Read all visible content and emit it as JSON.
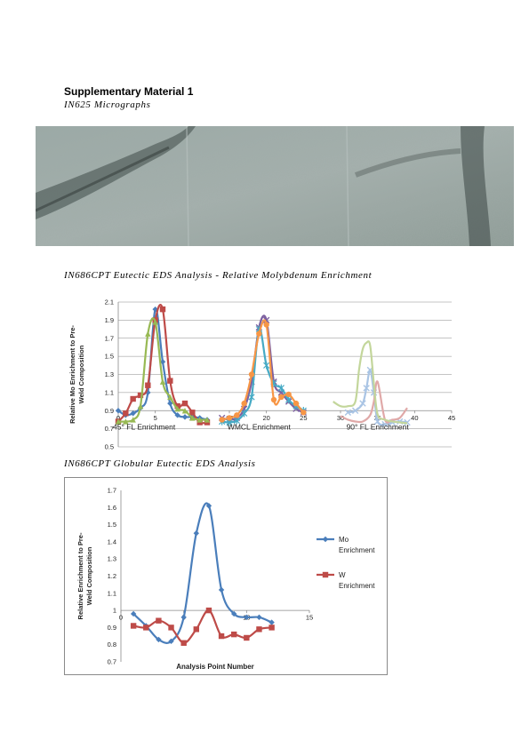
{
  "page": {
    "title": "Supplementary Material 1",
    "micrograph_caption": "IN625 Micrographs",
    "chart1_caption": "IN686CPT Eutectic EDS Analysis - Relative Molybdenum Enrichment",
    "chart2_caption": "IN686CPT Globular Eutectic EDS Analysis"
  },
  "colors": {
    "blue": "#4a7ebb",
    "red": "#be4b48",
    "green": "#98b954",
    "purple": "#7d60a0",
    "teal": "#46aac5",
    "orange": "#f79646",
    "micrograph_base": "#8fa09b"
  },
  "chart_data": [
    {
      "type": "line",
      "title": "",
      "ylabel": "Relative Mo Enrichment to Pre-Weld Composition",
      "xlabel": "",
      "xlim": [
        0,
        45
      ],
      "ylim": [
        0.5,
        2.1
      ],
      "xticks": [
        0,
        5,
        10,
        15,
        20,
        25,
        30,
        35,
        40,
        45
      ],
      "xtick_labels": [
        "0",
        "5",
        "10",
        "15",
        "20",
        "25",
        "30",
        "35",
        "40",
        "45"
      ],
      "yticks": [
        0.5,
        0.7,
        0.9,
        1.1,
        1.3,
        1.5,
        1.7,
        1.9,
        2.1
      ],
      "ytick_labels": [
        "0.5",
        "0.7",
        "0.9",
        "1.1",
        "1.3",
        "1.5",
        "1.7",
        "1.9",
        "2.1"
      ],
      "x_axis_at": 0.9,
      "grid": true,
      "region_labels": [
        {
          "text": "45° FL Enrichment",
          "x": 3.5
        },
        {
          "text": "WMCL Enrichment",
          "x": 19
        },
        {
          "text": "90° FL Enrichment",
          "x": 35
        }
      ],
      "series": [
        {
          "color": "#4a7ebb",
          "marker": "diamond",
          "x": [
            0,
            1,
            2,
            3,
            4,
            5,
            6,
            7,
            8,
            9,
            10,
            11,
            12
          ],
          "y": [
            0.9,
            0.85,
            0.87,
            0.93,
            1.1,
            2.02,
            1.44,
            0.98,
            0.85,
            0.83,
            0.83,
            0.82,
            0.8
          ]
        },
        {
          "color": "#be4b48",
          "marker": "square",
          "x": [
            0,
            1,
            2,
            3,
            4,
            5,
            6,
            7,
            8,
            9,
            10,
            11,
            12
          ],
          "y": [
            0.78,
            0.87,
            1.03,
            1.07,
            1.18,
            1.9,
            2.02,
            1.23,
            0.95,
            0.98,
            0.88,
            0.77,
            0.77
          ]
        },
        {
          "color": "#98b954",
          "marker": "triangle",
          "x": [
            0,
            1,
            2,
            3,
            4,
            5,
            6,
            7,
            8,
            9,
            10,
            11,
            12
          ],
          "y": [
            0.78,
            0.78,
            0.8,
            0.95,
            1.75,
            1.88,
            1.22,
            1.05,
            0.92,
            0.9,
            0.82,
            0.8,
            0.8
          ]
        },
        {
          "color": "#7d60a0",
          "marker": "x",
          "x": [
            14,
            15,
            16,
            17,
            18,
            19,
            20,
            21,
            22,
            23,
            24,
            25
          ],
          "y": [
            0.82,
            0.8,
            0.82,
            0.92,
            1.22,
            1.82,
            1.9,
            1.22,
            1.1,
            1.0,
            0.92,
            0.88
          ]
        },
        {
          "color": "#46aac5",
          "marker": "star",
          "x": [
            14,
            15,
            16,
            17,
            18,
            19,
            20,
            21,
            22,
            23,
            24,
            25
          ],
          "y": [
            0.78,
            0.77,
            0.79,
            0.87,
            1.05,
            1.8,
            1.4,
            1.2,
            1.15,
            1.02,
            0.95,
            0.9
          ]
        },
        {
          "color": "#f79646",
          "marker": "circle",
          "x": [
            14,
            15,
            16,
            17,
            18,
            19,
            20,
            21,
            22,
            23,
            24,
            25
          ],
          "y": [
            0.8,
            0.82,
            0.85,
            0.98,
            1.3,
            1.75,
            1.85,
            1.02,
            1.05,
            1.08,
            0.98,
            0.88
          ]
        },
        {
          "color": "#a9c4e4",
          "marker": "x",
          "x": [
            31,
            32,
            33,
            33.5,
            34,
            34.5,
            35,
            36,
            37,
            38,
            39
          ],
          "y": [
            0.88,
            0.9,
            0.98,
            1.15,
            1.35,
            1.1,
            0.78,
            0.75,
            0.77,
            0.78,
            0.77
          ]
        },
        {
          "color": "#e0a9a8",
          "marker": "none",
          "x": [
            30,
            31,
            32,
            33,
            34,
            34.5,
            35,
            36,
            37,
            38,
            39
          ],
          "y": [
            0.84,
            0.8,
            0.78,
            0.78,
            0.85,
            1.0,
            1.22,
            0.8,
            0.8,
            0.82,
            0.93
          ]
        },
        {
          "color": "#c3d69b",
          "marker": "none",
          "x": [
            29,
            30,
            31,
            32,
            32.5,
            33,
            33.5,
            34,
            34.5,
            35,
            36,
            37,
            38,
            39
          ],
          "y": [
            1.0,
            0.95,
            0.95,
            1.0,
            1.35,
            1.58,
            1.65,
            1.62,
            1.2,
            0.86,
            0.8,
            0.78,
            0.77,
            0.76
          ]
        }
      ]
    },
    {
      "type": "line",
      "title": "",
      "xlabel": "Analysis Point Number",
      "ylabel": "Relative Enrichment to Pre-Weld Composition",
      "xlim": [
        0,
        15
      ],
      "ylim": [
        0.7,
        1.7
      ],
      "xticks": [
        0,
        5,
        10,
        15
      ],
      "xtick_labels": [
        "0",
        "5",
        "10",
        "15"
      ],
      "yticks": [
        0.7,
        0.8,
        0.9,
        1.0,
        1.1,
        1.2,
        1.3,
        1.4,
        1.5,
        1.6,
        1.7
      ],
      "ytick_labels": [
        "0.7",
        "0.8",
        "0.9",
        "1",
        "1.1",
        "1.2",
        "1.3",
        "1.4",
        "1.5",
        "1.6",
        "1.7"
      ],
      "x_axis_at": 1.0,
      "grid": false,
      "legend": "right",
      "series": [
        {
          "name": "Mo Enrichment",
          "color": "#4a7ebb",
          "marker": "diamond",
          "x": [
            1,
            2,
            3,
            4,
            5,
            6,
            7,
            8,
            9,
            10,
            11,
            12
          ],
          "y": [
            0.98,
            0.91,
            0.83,
            0.82,
            0.96,
            1.45,
            1.61,
            1.12,
            0.98,
            0.96,
            0.96,
            0.93
          ]
        },
        {
          "name": "W Enrichment",
          "color": "#be4b48",
          "marker": "square",
          "x": [
            1,
            2,
            3,
            4,
            5,
            6,
            7,
            8,
            9,
            10,
            11,
            12
          ],
          "y": [
            0.91,
            0.9,
            0.94,
            0.9,
            0.81,
            0.89,
            1.0,
            0.85,
            0.86,
            0.84,
            0.89,
            0.9
          ]
        }
      ]
    }
  ]
}
